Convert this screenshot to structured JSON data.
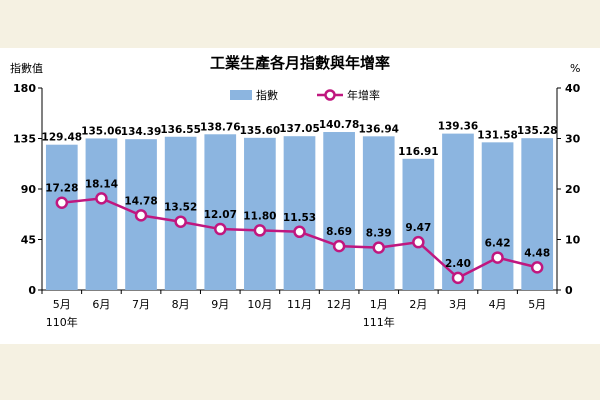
{
  "chart_data": {
    "type": "bar",
    "title": "工業生產各月指數與年增率",
    "categories": [
      "5月",
      "6月",
      "7月",
      "8月",
      "9月",
      "10月",
      "11月",
      "12月",
      "1月",
      "2月",
      "3月",
      "4月",
      "5月"
    ],
    "year_labels": [
      {
        "index": 0,
        "label": "110年"
      },
      {
        "index": 8,
        "label": "111年"
      }
    ],
    "left_axis": {
      "label": "指數值",
      "ylim": [
        0,
        180
      ],
      "ticks": [
        0,
        45,
        90,
        135,
        180
      ]
    },
    "right_axis": {
      "label": "%",
      "ylim": [
        0,
        40
      ],
      "ticks": [
        0,
        10,
        20,
        30,
        40
      ]
    },
    "series": [
      {
        "name": "指數",
        "type": "bar",
        "axis": "left",
        "color": "#8cb5e0",
        "values": [
          129.48,
          135.06,
          134.39,
          136.55,
          138.76,
          135.6,
          137.05,
          140.78,
          136.94,
          116.91,
          139.36,
          131.58,
          135.28
        ]
      },
      {
        "name": "年增率",
        "type": "line",
        "axis": "right",
        "color": "#c0177f",
        "values": [
          17.28,
          18.14,
          14.78,
          13.52,
          12.07,
          11.8,
          11.53,
          8.69,
          8.39,
          9.47,
          2.4,
          6.42,
          4.48
        ]
      }
    ],
    "legend": "top-center",
    "grid": false
  }
}
